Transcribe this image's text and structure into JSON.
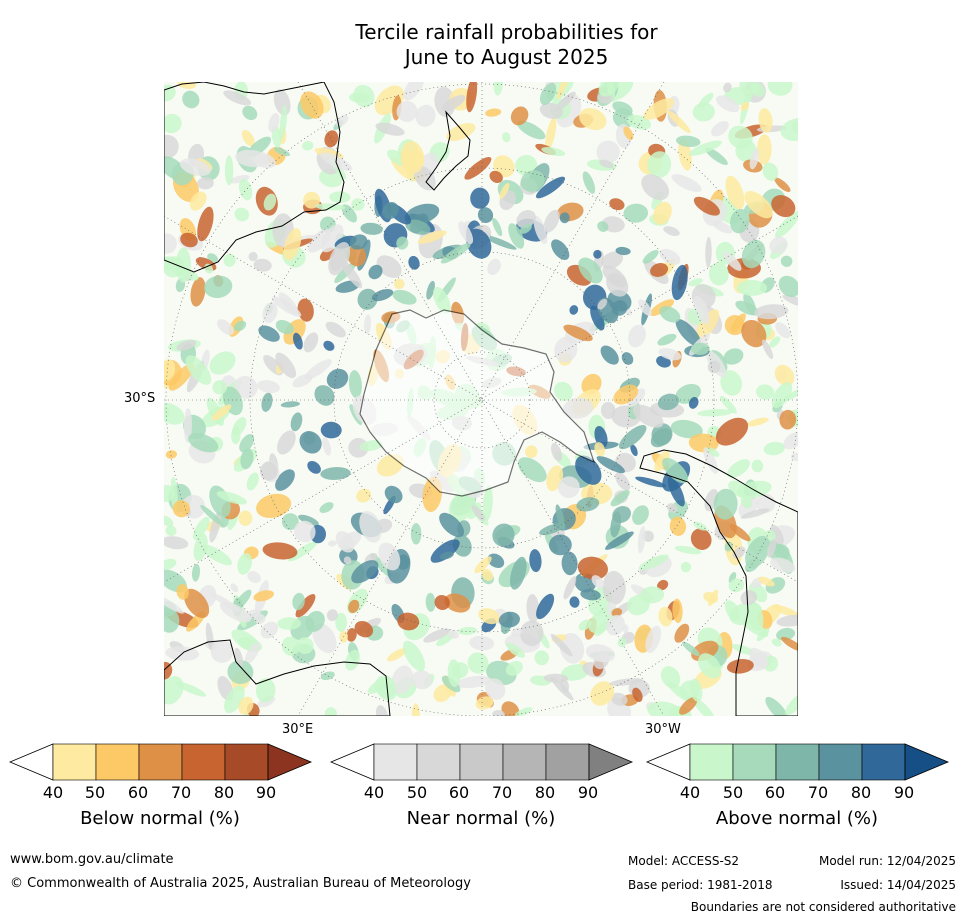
{
  "title": {
    "line1": "Tercile rainfall probabilities for",
    "line2": "June to August 2025"
  },
  "map": {
    "latitude_label": "30°S",
    "longitude_label_east": "30°E",
    "longitude_label_west": "30°W"
  },
  "colorbars": [
    {
      "id": "below",
      "label": "Below normal (%)",
      "ticks": [
        "40",
        "50",
        "60",
        "70",
        "80",
        "90"
      ],
      "colors": [
        "#ffffff",
        "#feeaa0",
        "#fdc966",
        "#de9046",
        "#c8642f",
        "#a74a28",
        "#8c3420"
      ]
    },
    {
      "id": "near",
      "label": "Near normal (%)",
      "ticks": [
        "40",
        "50",
        "60",
        "70",
        "80",
        "90"
      ],
      "colors": [
        "#ffffff",
        "#e6e6e6",
        "#d8d8d8",
        "#c9c9c9",
        "#b5b5b5",
        "#a1a1a1",
        "#808080"
      ]
    },
    {
      "id": "above",
      "label": "Above normal (%)",
      "ticks": [
        "40",
        "50",
        "60",
        "70",
        "80",
        "90"
      ],
      "colors": [
        "#ffffff",
        "#c9f7cb",
        "#a6dabb",
        "#7fb6aa",
        "#5b929f",
        "#30689a",
        "#154f86"
      ]
    }
  ],
  "footer": {
    "url": "www.bom.gov.au/climate",
    "copyright": "© Commonwealth of Australia 2025, Australian Bureau of Meteorology",
    "model": "Model: ACCESS-S2",
    "model_run": "Model run: 12/04/2025",
    "base_period": "Base period: 1981-2018",
    "issued": "Issued: 14/04/2025",
    "disclaimer": "Boundaries are not considered authoritative"
  }
}
